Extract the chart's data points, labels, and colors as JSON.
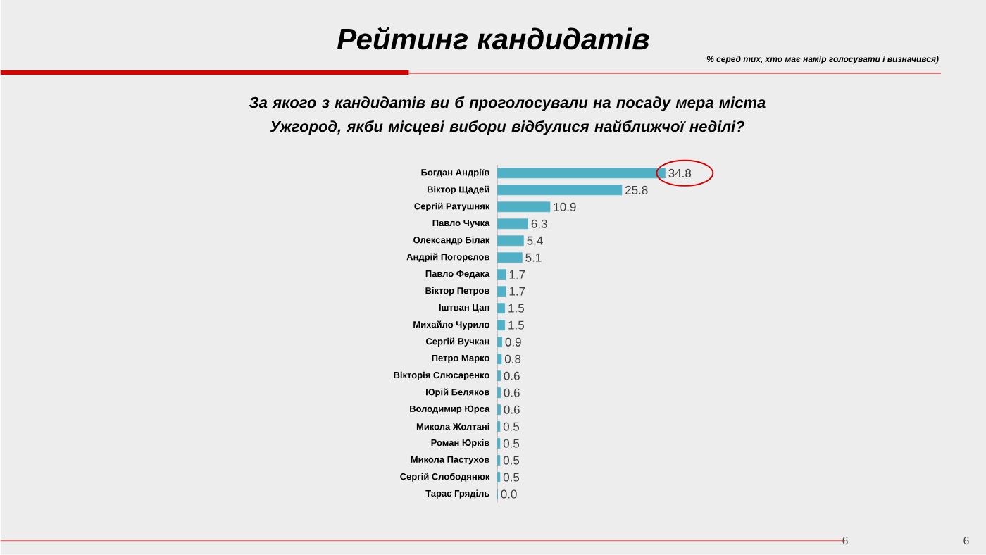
{
  "chart_data": {
    "type": "bar",
    "orientation": "horizontal",
    "title": "Рейтинг кандидатів",
    "subtitle": "% серед тих, хто має намір голосувати  і визначився)",
    "categories": [
      "Богдан Андріїв",
      "Віктор Щадей",
      "Сергій Ратушняк",
      "Павло Чучка",
      "Олександр Білак",
      "Андрій Погорєлов",
      "Павло Федака",
      "Віктор Петров",
      "Іштван Цап",
      "Михайло Чурило",
      "Сергій Вучкан",
      "Петро Марко",
      "Вікторія Слюсаренко",
      "Юрій Беляков",
      "Володимир Юрса",
      "Микола Жолтані",
      "Роман Юрків",
      "Микола Пастухов",
      "Сергій Слободянюк",
      "Тарас Гряділь"
    ],
    "values": [
      34.8,
      25.8,
      10.9,
      6.3,
      5.4,
      5.1,
      1.7,
      1.7,
      1.5,
      1.5,
      0.9,
      0.8,
      0.6,
      0.6,
      0.6,
      0.5,
      0.5,
      0.5,
      0.5,
      0.0
    ],
    "value_labels": [
      "34.8",
      "25.8",
      "10.9",
      "6.3",
      "5.4",
      "5.1",
      "1.7",
      "1.7",
      "1.5",
      "1.5",
      "0.9",
      "0.8",
      "0.6",
      "0.6",
      "0.6",
      "0.5",
      "0.5",
      "0.5",
      "0.5",
      "0.0"
    ],
    "color": "#4fb0c6",
    "annotations": [
      "За якого з кандидатів ви б проголосували на посаду мера  міста  Ужгород, якби місцеві вибори відбулися найближчої неділі?",
      "6",
      "6"
    ]
  }
}
